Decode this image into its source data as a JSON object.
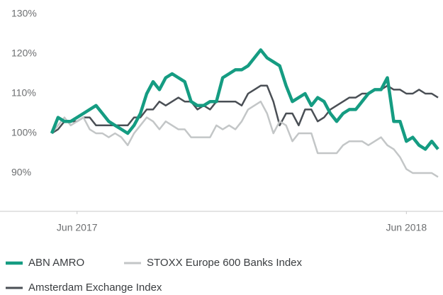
{
  "chart_data": {
    "type": "line",
    "x": [
      0,
      1,
      2,
      3,
      4,
      5,
      6,
      7,
      8,
      9,
      10,
      11,
      12,
      13,
      14,
      15,
      16,
      17,
      18,
      19,
      20,
      21,
      22,
      23,
      24,
      25,
      26,
      27,
      28,
      29,
      30,
      31,
      32,
      33,
      34,
      35,
      36,
      37,
      38,
      39,
      40,
      41,
      42,
      43,
      44,
      45,
      46,
      47,
      48,
      49,
      50,
      51,
      52,
      53,
      54,
      55,
      56,
      57,
      58,
      59,
      60,
      61
    ],
    "xlim": [
      0,
      61
    ],
    "xticks": [
      {
        "value": 4,
        "label": "Jun 2017"
      },
      {
        "value": 56,
        "label": "Jun 2018"
      }
    ],
    "ylim": [
      80,
      130
    ],
    "yticks": [
      {
        "value": 90,
        "label": "90%"
      },
      {
        "value": 100,
        "label": "100%"
      },
      {
        "value": 110,
        "label": "110%"
      },
      {
        "value": 120,
        "label": "120%"
      },
      {
        "value": 130,
        "label": "130%"
      }
    ],
    "series": [
      {
        "name": "ABN AMRO",
        "color": "#159c82",
        "values": [
          100,
          104,
          103,
          103,
          104,
          105,
          106,
          107,
          105,
          103,
          102,
          101,
          100,
          102,
          105,
          110,
          113,
          111,
          114,
          115,
          114,
          113,
          108,
          107,
          107,
          108,
          108,
          114,
          115,
          116,
          116,
          117,
          119,
          121,
          119,
          118,
          117,
          112,
          108,
          109,
          110,
          107,
          109,
          108,
          105,
          103,
          105,
          106,
          106,
          108,
          110,
          111,
          111,
          114,
          103,
          103,
          98,
          99,
          97,
          96,
          98,
          96
        ]
      },
      {
        "name": "STOXX Europe 600 Banks Index",
        "color": "#c3c6c7",
        "values": [
          100,
          102,
          104,
          102,
          103,
          104,
          101,
          100,
          100,
          99,
          100,
          99,
          97,
          100,
          102,
          104,
          103,
          101,
          103,
          102,
          101,
          101,
          99,
          99,
          99,
          99,
          102,
          101,
          102,
          101,
          103,
          106,
          107,
          108,
          105,
          100,
          103,
          102,
          98,
          100,
          100,
          100,
          95,
          95,
          95,
          95,
          97,
          98,
          98,
          98,
          97,
          98,
          99,
          97,
          96,
          94,
          91,
          90,
          90,
          90,
          90,
          89
        ]
      },
      {
        "name": "Amsterdam Exchange Index",
        "color": "#4a4f55",
        "values": [
          100,
          101,
          103,
          103,
          103,
          104,
          104,
          102,
          102,
          102,
          102,
          102,
          102,
          104,
          104,
          106,
          106,
          108,
          107,
          108,
          109,
          108,
          108,
          106,
          107,
          106,
          108,
          108,
          108,
          108,
          107,
          110,
          111,
          112,
          112,
          108,
          102,
          105,
          105,
          102,
          106,
          106,
          103,
          104,
          106,
          107,
          108,
          109,
          109,
          110,
          110,
          111,
          111,
          112,
          111,
          111,
          110,
          110,
          111,
          110,
          110,
          109
        ]
      }
    ]
  }
}
